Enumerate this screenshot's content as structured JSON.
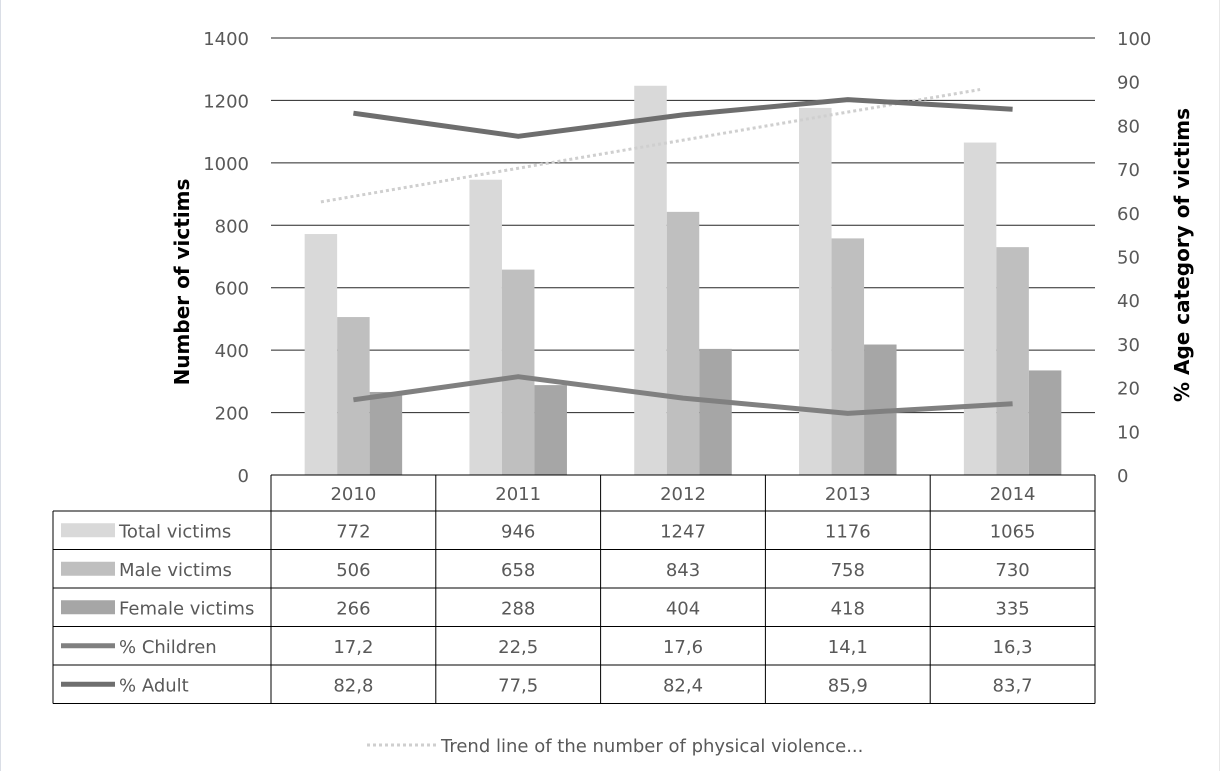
{
  "chart_data": {
    "type": "bar",
    "categories": [
      "2010",
      "2011",
      "2012",
      "2013",
      "2014"
    ],
    "ylabel": "Number of victims",
    "y2label": "% Age category of victims",
    "ylim": [
      0,
      1400
    ],
    "y2lim": [
      0,
      100
    ],
    "yticks": [
      "0",
      "200",
      "400",
      "600",
      "800",
      "1000",
      "1200",
      "1400"
    ],
    "y2ticks": [
      "0",
      "10",
      "20",
      "30",
      "40",
      "50",
      "60",
      "70",
      "80",
      "90",
      "100"
    ],
    "grid": true,
    "legend_position": "bottom",
    "series": [
      {
        "name": "Total victims",
        "type": "bar",
        "axis": "left",
        "color": "#d9d9d9",
        "values": [
          772,
          946,
          1247,
          1176,
          1065
        ],
        "labels": [
          "772",
          "946",
          "1247",
          "1176",
          "1065"
        ]
      },
      {
        "name": "Male victims",
        "type": "bar",
        "axis": "left",
        "color": "#bfbfbf",
        "values": [
          506,
          658,
          843,
          758,
          730
        ],
        "labels": [
          "506",
          "658",
          "843",
          "758",
          "730"
        ]
      },
      {
        "name": "Female victims",
        "type": "bar",
        "axis": "left",
        "color": "#a6a6a6",
        "values": [
          266,
          288,
          404,
          418,
          335
        ],
        "labels": [
          "266",
          "288",
          "404",
          "418",
          "335"
        ]
      },
      {
        "name": "% Children",
        "type": "line",
        "axis": "right",
        "color": "#808080",
        "values": [
          17.2,
          22.5,
          17.6,
          14.1,
          16.3
        ],
        "labels": [
          "17,2",
          "22,5",
          "17,6",
          "14,1",
          "16,3"
        ]
      },
      {
        "name": "% Adult",
        "type": "line",
        "axis": "right",
        "color": "#6e6e6e",
        "values": [
          82.8,
          77.5,
          82.4,
          85.9,
          83.7
        ],
        "labels": [
          "82,8",
          "77,5",
          "82,4",
          "85,9",
          "83,7"
        ]
      }
    ],
    "trendline": {
      "name": "Trend line of the number of physical violence...",
      "of_series": "Total victims",
      "color": "#cfcfcf",
      "values": [
        875,
        965,
        1055,
        1145,
        1235
      ]
    }
  }
}
